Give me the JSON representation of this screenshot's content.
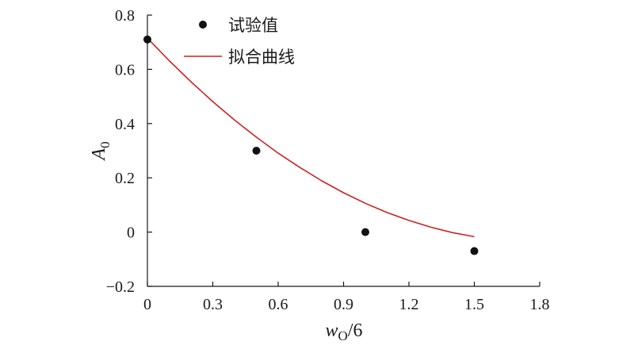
{
  "chart_data": {
    "type": "scatter",
    "xlabel": {
      "main": "w",
      "sub": "O",
      "suffix": "/6"
    },
    "ylabel": {
      "main": "A",
      "sub": "0"
    },
    "xlim": [
      0,
      1.8
    ],
    "ylim": [
      -0.2,
      0.8
    ],
    "x_ticks": [
      "0",
      "0.3",
      "0.6",
      "0.9",
      "1.2",
      "1.5",
      "1.8"
    ],
    "y_ticks": [
      "−0.2",
      "0",
      "0.2",
      "0.4",
      "0.6",
      "0.8"
    ],
    "x_tick_values": [
      0,
      0.3,
      0.6,
      0.9,
      1.2,
      1.5,
      1.8
    ],
    "y_tick_values": [
      -0.2,
      0,
      0.2,
      0.4,
      0.6,
      0.8
    ],
    "grid": false,
    "legend_position": "top-left",
    "series": [
      {
        "name": "试验值",
        "kind": "points",
        "color": "#111111",
        "x": [
          0,
          0.5,
          1.0,
          1.5
        ],
        "y": [
          0.71,
          0.3,
          0.0,
          -0.07
        ]
      },
      {
        "name": "拟合曲线",
        "kind": "line",
        "color": "#cc2222",
        "x": [
          0,
          0.1,
          0.2,
          0.3,
          0.4,
          0.5,
          0.6,
          0.7,
          0.8,
          0.9,
          1.0,
          1.1,
          1.2,
          1.3,
          1.4,
          1.5
        ],
        "y": [
          0.715,
          0.632,
          0.554,
          0.481,
          0.413,
          0.35,
          0.291,
          0.238,
          0.189,
          0.145,
          0.106,
          0.072,
          0.043,
          0.018,
          -0.002,
          -0.017
        ]
      }
    ]
  }
}
